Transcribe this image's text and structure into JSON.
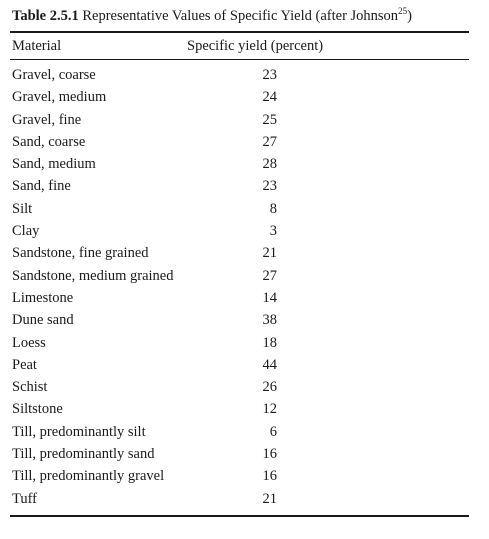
{
  "table": {
    "caption_label": "Table 2.5.1",
    "caption_text": "Representative Values of Specific Yield (after Johnson",
    "caption_ref": "25",
    "caption_end": ")",
    "headers": [
      "Material",
      "Specific yield (percent)"
    ],
    "rows": [
      {
        "material": "Gravel, coarse",
        "yield": "23"
      },
      {
        "material": "Gravel, medium",
        "yield": "24"
      },
      {
        "material": "Gravel, fine",
        "yield": "25"
      },
      {
        "material": "Sand, coarse",
        "yield": "27"
      },
      {
        "material": "Sand, medium",
        "yield": "28"
      },
      {
        "material": "Sand, fine",
        "yield": "23"
      },
      {
        "material": "Silt",
        "yield": "8"
      },
      {
        "material": "Clay",
        "yield": "3"
      },
      {
        "material": "Sandstone, fine grained",
        "yield": "21"
      },
      {
        "material": "Sandstone, medium grained",
        "yield": "27"
      },
      {
        "material": "Limestone",
        "yield": "14"
      },
      {
        "material": "Dune sand",
        "yield": "38"
      },
      {
        "material": "Loess",
        "yield": "18"
      },
      {
        "material": "Peat",
        "yield": "44"
      },
      {
        "material": "Schist",
        "yield": "26"
      },
      {
        "material": "Siltstone",
        "yield": "12"
      },
      {
        "material": "Till, predominantly silt",
        "yield": "6"
      },
      {
        "material": "Till, predominantly sand",
        "yield": "16"
      },
      {
        "material": "Till, predominantly gravel",
        "yield": "16"
      },
      {
        "material": "Tuff",
        "yield": "21"
      }
    ]
  }
}
